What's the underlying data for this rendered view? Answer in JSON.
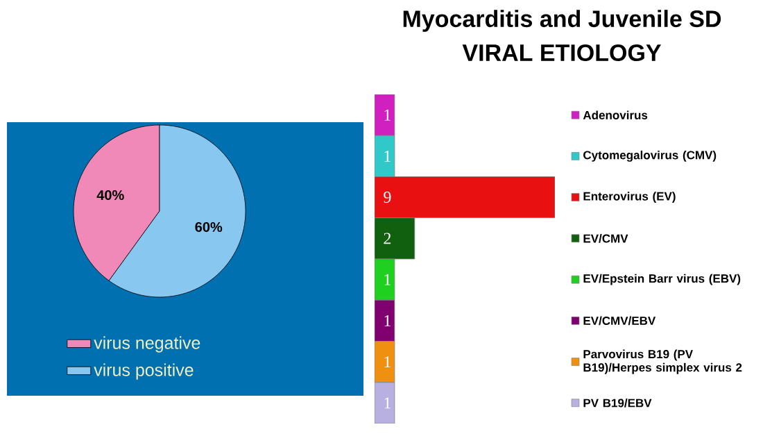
{
  "chart_data": [
    {
      "type": "pie",
      "categories": [
        "virus negative",
        "virus positive"
      ],
      "values": [
        40,
        60
      ],
      "colors": [
        "#f088b8",
        "#88c8f0"
      ],
      "value_labels": [
        "40%",
        "60%"
      ],
      "legend": "bottom left"
    },
    {
      "type": "bar",
      "title": "Myocarditis and Juvenile SD",
      "subtitle": "VIRAL ETIOLOGY",
      "orientation": "horizontal",
      "categories": [
        "Adenovirus",
        "Cytomegalovirus (CMV)",
        "Enterovirus (EV)",
        "EV/CMV",
        "EV/Epstein Barr virus (EBV)",
        "EV/CMV/EBV",
        "Parvovirus B19 (PV B19)/Herpes simplex virus 2",
        "PV B19/EBV"
      ],
      "values": [
        1,
        1,
        9,
        2,
        1,
        1,
        1,
        1
      ],
      "colors": [
        "#d020c0",
        "#30c8c8",
        "#e81010",
        "#106010",
        "#20d020",
        "#800070",
        "#f09010",
        "#b8b0e0"
      ],
      "data_labels": true
    }
  ]
}
